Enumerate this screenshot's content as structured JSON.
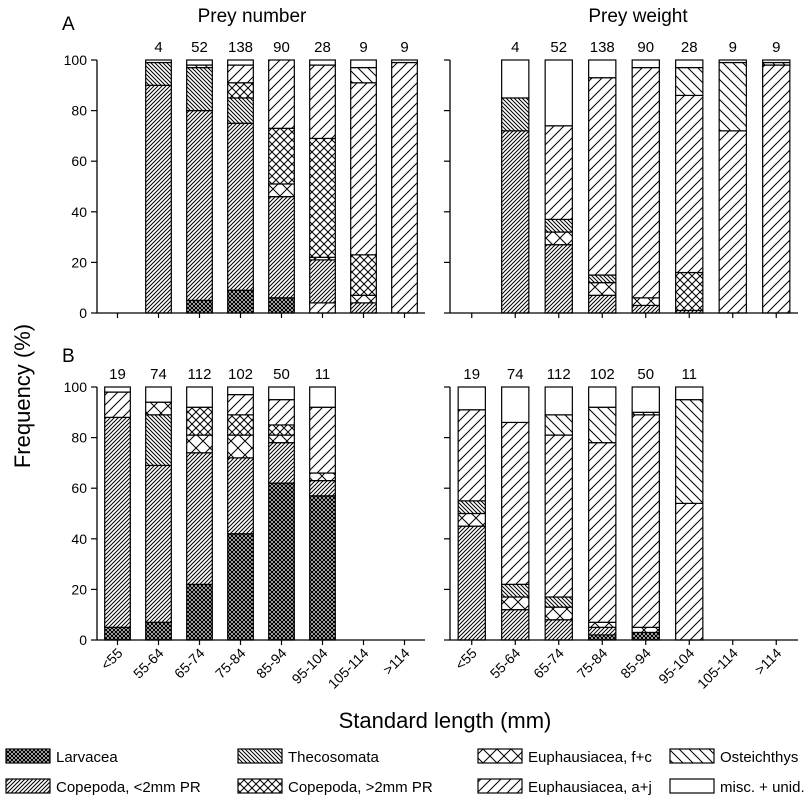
{
  "chart_data": {
    "type": "bar",
    "stacked": true,
    "xlabel": "Standard length (mm)",
    "ylabel": "Frequency (%)",
    "ylim": [
      0,
      100
    ],
    "yticks": [
      0,
      20,
      40,
      60,
      80,
      100
    ],
    "categories": [
      "<55",
      "55-64",
      "65-74",
      "75-84",
      "85-94",
      "95-104",
      "105-114",
      ">114"
    ],
    "legend": [
      {
        "name": "Larvacea",
        "pattern": "crosshatch-dense"
      },
      {
        "name": "Thecosomata",
        "pattern": "diag-back-dense"
      },
      {
        "name": "Euphausiacea, f+c",
        "pattern": "crosshatch-wide"
      },
      {
        "name": "Osteichthys",
        "pattern": "diag-back-wide"
      },
      {
        "name": "Copepoda, <2mm PR",
        "pattern": "diag-fwd-dense"
      },
      {
        "name": "Copepoda, >2mm PR",
        "pattern": "crosshatch-medium"
      },
      {
        "name": "Euphausiacea, a+j",
        "pattern": "diag-fwd-wide"
      },
      {
        "name": "misc. + unid.",
        "pattern": "blank"
      }
    ],
    "panels": [
      {
        "id": "A-number",
        "letter": "A",
        "title": "Prey number",
        "n": [
          "",
          "4",
          "52",
          "138",
          "90",
          "28",
          "9",
          "9"
        ],
        "bars": [
          {
            "category": "<55",
            "segments": []
          },
          {
            "category": "55-64",
            "segments": [
              {
                "taxon": "Copepoda, <2mm PR",
                "value": 90
              },
              {
                "taxon": "Thecosomata",
                "value": 9
              },
              {
                "taxon": "misc. + unid.",
                "value": 1
              }
            ]
          },
          {
            "category": "65-74",
            "segments": [
              {
                "taxon": "Larvacea",
                "value": 5
              },
              {
                "taxon": "Copepoda, <2mm PR",
                "value": 75
              },
              {
                "taxon": "Thecosomata",
                "value": 17
              },
              {
                "taxon": "Osteichthys",
                "value": 1
              },
              {
                "taxon": "misc. + unid.",
                "value": 2
              }
            ]
          },
          {
            "category": "75-84",
            "segments": [
              {
                "taxon": "Larvacea",
                "value": 9
              },
              {
                "taxon": "Copepoda, <2mm PR",
                "value": 66
              },
              {
                "taxon": "Thecosomata",
                "value": 10
              },
              {
                "taxon": "Copepoda, >2mm PR",
                "value": 6
              },
              {
                "taxon": "Euphausiacea, a+j",
                "value": 7
              },
              {
                "taxon": "misc. + unid.",
                "value": 2
              }
            ]
          },
          {
            "category": "85-94",
            "segments": [
              {
                "taxon": "Larvacea",
                "value": 6
              },
              {
                "taxon": "Copepoda, <2mm PR",
                "value": 40
              },
              {
                "taxon": "Euphausiacea, f+c",
                "value": 5
              },
              {
                "taxon": "Copepoda, >2mm PR",
                "value": 22
              },
              {
                "taxon": "Euphausiacea, a+j",
                "value": 27
              }
            ]
          },
          {
            "category": "95-104",
            "segments": [
              {
                "taxon": "Euphausiacea, a+j",
                "value": 4
              },
              {
                "taxon": "Copepoda, <2mm PR",
                "value": 17
              },
              {
                "taxon": "Euphausiacea, f+c",
                "value": 1
              },
              {
                "taxon": "Copepoda, >2mm PR",
                "value": 47
              },
              {
                "taxon": "Euphausiacea, a+j",
                "value": 29
              },
              {
                "taxon": "misc. + unid.",
                "value": 2
              }
            ]
          },
          {
            "category": "105-114",
            "segments": [
              {
                "taxon": "Copepoda, <2mm PR",
                "value": 4
              },
              {
                "taxon": "Euphausiacea, f+c",
                "value": 3
              },
              {
                "taxon": "Copepoda, >2mm PR",
                "value": 16
              },
              {
                "taxon": "Euphausiacea, a+j",
                "value": 68
              },
              {
                "taxon": "Osteichthys",
                "value": 6
              },
              {
                "taxon": "misc. + unid.",
                "value": 3
              }
            ]
          },
          {
            "category": ">114",
            "segments": [
              {
                "taxon": "Euphausiacea, a+j",
                "value": 99
              },
              {
                "taxon": "misc. + unid.",
                "value": 1
              }
            ]
          }
        ]
      },
      {
        "id": "A-weight",
        "letter": "",
        "title": "Prey weight",
        "n": [
          "",
          "4",
          "52",
          "138",
          "90",
          "28",
          "9",
          "9"
        ],
        "bars": [
          {
            "category": "<55",
            "segments": []
          },
          {
            "category": "55-64",
            "segments": [
              {
                "taxon": "Copepoda, <2mm PR",
                "value": 72
              },
              {
                "taxon": "Thecosomata",
                "value": 13
              },
              {
                "taxon": "misc. + unid.",
                "value": 15
              }
            ]
          },
          {
            "category": "65-74",
            "segments": [
              {
                "taxon": "Copepoda, <2mm PR",
                "value": 27
              },
              {
                "taxon": "Euphausiacea, f+c",
                "value": 5
              },
              {
                "taxon": "Thecosomata",
                "value": 5
              },
              {
                "taxon": "Euphausiacea, a+j",
                "value": 37
              },
              {
                "taxon": "misc. + unid.",
                "value": 26
              }
            ]
          },
          {
            "category": "75-84",
            "segments": [
              {
                "taxon": "Copepoda, <2mm PR",
                "value": 7
              },
              {
                "taxon": "Euphausiacea, f+c",
                "value": 5
              },
              {
                "taxon": "Thecosomata",
                "value": 3
              },
              {
                "taxon": "Euphausiacea, a+j",
                "value": 78
              },
              {
                "taxon": "misc. + unid.",
                "value": 7
              }
            ]
          },
          {
            "category": "85-94",
            "segments": [
              {
                "taxon": "Copepoda, <2mm PR",
                "value": 3
              },
              {
                "taxon": "Euphausiacea, f+c",
                "value": 3
              },
              {
                "taxon": "Euphausiacea, a+j",
                "value": 91
              },
              {
                "taxon": "misc. + unid.",
                "value": 3
              }
            ]
          },
          {
            "category": "95-104",
            "segments": [
              {
                "taxon": "Copepoda, <2mm PR",
                "value": 1
              },
              {
                "taxon": "Copepoda, >2mm PR",
                "value": 15
              },
              {
                "taxon": "Euphausiacea, a+j",
                "value": 70
              },
              {
                "taxon": "Osteichthys",
                "value": 11
              },
              {
                "taxon": "misc. + unid.",
                "value": 3
              }
            ]
          },
          {
            "category": "105-114",
            "segments": [
              {
                "taxon": "Euphausiacea, a+j",
                "value": 72
              },
              {
                "taxon": "Osteichthys",
                "value": 27
              },
              {
                "taxon": "misc. + unid.",
                "value": 1
              }
            ]
          },
          {
            "category": ">114",
            "segments": [
              {
                "taxon": "Euphausiacea, a+j",
                "value": 98
              },
              {
                "taxon": "Osteichthys",
                "value": 1
              },
              {
                "taxon": "misc. + unid.",
                "value": 1
              }
            ]
          }
        ]
      },
      {
        "id": "B-number",
        "letter": "B",
        "title": "",
        "n": [
          "19",
          "74",
          "112",
          "102",
          "50",
          "11",
          "",
          ""
        ],
        "bars": [
          {
            "category": "<55",
            "segments": [
              {
                "taxon": "Larvacea",
                "value": 5
              },
              {
                "taxon": "Copepoda, <2mm PR",
                "value": 83
              },
              {
                "taxon": "Euphausiacea, a+j",
                "value": 10
              },
              {
                "taxon": "misc. + unid.",
                "value": 2
              }
            ]
          },
          {
            "category": "55-64",
            "segments": [
              {
                "taxon": "Larvacea",
                "value": 7
              },
              {
                "taxon": "Copepoda, <2mm PR",
                "value": 62
              },
              {
                "taxon": "Thecosomata",
                "value": 20
              },
              {
                "taxon": "Euphausiacea, f+c",
                "value": 5
              },
              {
                "taxon": "misc. + unid.",
                "value": 6
              }
            ]
          },
          {
            "category": "65-74",
            "segments": [
              {
                "taxon": "Larvacea",
                "value": 22
              },
              {
                "taxon": "Copepoda, <2mm PR",
                "value": 52
              },
              {
                "taxon": "Euphausiacea, f+c",
                "value": 7
              },
              {
                "taxon": "Copepoda, >2mm PR",
                "value": 11
              },
              {
                "taxon": "misc. + unid.",
                "value": 8
              }
            ]
          },
          {
            "category": "75-84",
            "segments": [
              {
                "taxon": "Larvacea",
                "value": 42
              },
              {
                "taxon": "Copepoda, <2mm PR",
                "value": 30
              },
              {
                "taxon": "Euphausiacea, f+c",
                "value": 9
              },
              {
                "taxon": "Copepoda, >2mm PR",
                "value": 8
              },
              {
                "taxon": "Euphausiacea, a+j",
                "value": 8
              },
              {
                "taxon": "misc. + unid.",
                "value": 3
              }
            ]
          },
          {
            "category": "85-94",
            "segments": [
              {
                "taxon": "Larvacea",
                "value": 62
              },
              {
                "taxon": "Copepoda, <2mm PR",
                "value": 16
              },
              {
                "taxon": "Euphausiacea, f+c",
                "value": 3
              },
              {
                "taxon": "Copepoda, >2mm PR",
                "value": 4
              },
              {
                "taxon": "Euphausiacea, a+j",
                "value": 10
              },
              {
                "taxon": "misc. + unid.",
                "value": 5
              }
            ]
          },
          {
            "category": "95-104",
            "segments": [
              {
                "taxon": "Larvacea",
                "value": 57
              },
              {
                "taxon": "Copepoda, <2mm PR",
                "value": 6
              },
              {
                "taxon": "Euphausiacea, f+c",
                "value": 3
              },
              {
                "taxon": "Euphausiacea, a+j",
                "value": 26
              },
              {
                "taxon": "misc. + unid.",
                "value": 8
              }
            ]
          },
          {
            "category": "105-114",
            "segments": []
          },
          {
            "category": ">114",
            "segments": []
          }
        ]
      },
      {
        "id": "B-weight",
        "letter": "",
        "title": "",
        "n": [
          "19",
          "74",
          "112",
          "102",
          "50",
          "11",
          "",
          ""
        ],
        "bars": [
          {
            "category": "<55",
            "segments": [
              {
                "taxon": "Copepoda, <2mm PR",
                "value": 45
              },
              {
                "taxon": "Euphausiacea, f+c",
                "value": 5
              },
              {
                "taxon": "Thecosomata",
                "value": 5
              },
              {
                "taxon": "Euphausiacea, a+j",
                "value": 36
              },
              {
                "taxon": "misc. + unid.",
                "value": 9
              }
            ]
          },
          {
            "category": "55-64",
            "segments": [
              {
                "taxon": "Copepoda, <2mm PR",
                "value": 12
              },
              {
                "taxon": "Euphausiacea, f+c",
                "value": 5
              },
              {
                "taxon": "Thecosomata",
                "value": 5
              },
              {
                "taxon": "Euphausiacea, a+j",
                "value": 64
              },
              {
                "taxon": "misc. + unid.",
                "value": 14
              }
            ]
          },
          {
            "category": "65-74",
            "segments": [
              {
                "taxon": "Copepoda, <2mm PR",
                "value": 8
              },
              {
                "taxon": "Euphausiacea, f+c",
                "value": 5
              },
              {
                "taxon": "Thecosomata",
                "value": 4
              },
              {
                "taxon": "Euphausiacea, a+j",
                "value": 64
              },
              {
                "taxon": "Osteichthys",
                "value": 8
              },
              {
                "taxon": "misc. + unid.",
                "value": 11
              }
            ]
          },
          {
            "category": "75-84",
            "segments": [
              {
                "taxon": "Larvacea",
                "value": 2
              },
              {
                "taxon": "Copepoda, <2mm PR",
                "value": 3
              },
              {
                "taxon": "Euphausiacea, f+c",
                "value": 2
              },
              {
                "taxon": "Euphausiacea, a+j",
                "value": 71
              },
              {
                "taxon": "Osteichthys",
                "value": 14
              },
              {
                "taxon": "misc. + unid.",
                "value": 8
              }
            ]
          },
          {
            "category": "85-94",
            "segments": [
              {
                "taxon": "Larvacea",
                "value": 3
              },
              {
                "taxon": "Euphausiacea, f+c",
                "value": 2
              },
              {
                "taxon": "Euphausiacea, a+j",
                "value": 84
              },
              {
                "taxon": "Osteichthys",
                "value": 1
              },
              {
                "taxon": "misc. + unid.",
                "value": 10
              }
            ]
          },
          {
            "category": "95-104",
            "segments": [
              {
                "taxon": "Euphausiacea, a+j",
                "value": 54
              },
              {
                "taxon": "Osteichthys",
                "value": 41
              },
              {
                "taxon": "misc. + unid.",
                "value": 5
              }
            ]
          },
          {
            "category": "105-114",
            "segments": []
          },
          {
            "category": ">114",
            "segments": []
          }
        ]
      }
    ]
  }
}
